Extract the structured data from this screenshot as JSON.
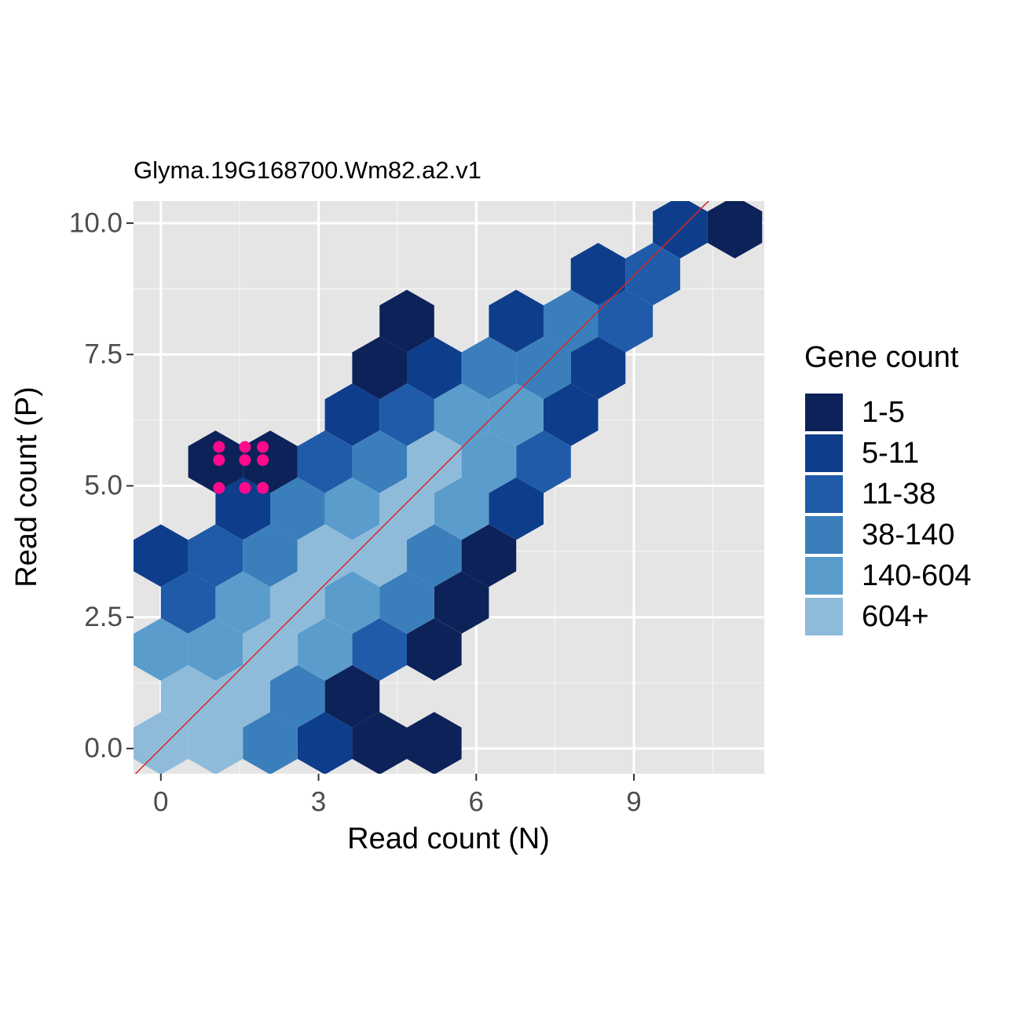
{
  "chart_data": {
    "type": "hexbin",
    "title": "Glyma.19G168700.Wm82.a2.v1",
    "x_label": "Read count (N)",
    "y_label": "Read count (P)",
    "legend_title": "Gene count",
    "xlim": [
      -0.52,
      11.48
    ],
    "ylim": [
      -0.48,
      10.42
    ],
    "xticks": [
      0,
      3,
      6,
      9
    ],
    "yticks": [
      {
        "value": 0,
        "label": "0.0"
      },
      2.5,
      {
        "value": 5,
        "label": "5.0"
      },
      7.5,
      {
        "value": 10,
        "label": "10.0"
      }
    ],
    "x_minor_grid": [
      1.5,
      4.5,
      7.5,
      10.5
    ],
    "y_minor_grid": [
      1.25,
      3.75,
      6.25,
      8.75
    ],
    "grid": true,
    "legend_position": "right",
    "series": [
      {
        "name": "1-5",
        "color": "#0c2259",
        "x": [
          4.16,
          5.2,
          3.64,
          5.2,
          5.72,
          6.24,
          1.04,
          2.08,
          4.16,
          4.68,
          10.92
        ],
        "values": [
          0.1,
          0.1,
          0.993,
          1.886,
          2.779,
          3.672,
          5.458,
          5.458,
          7.244,
          8.137,
          9.923
        ]
      },
      {
        "name": "5-11",
        "color": "#0e3d8c",
        "x": [
          3.12,
          0,
          1.56,
          6.76,
          3.64,
          7.8,
          5.2,
          8.32,
          6.76,
          8.32,
          9.88
        ],
        "values": [
          0.1,
          3.672,
          4.565,
          4.565,
          6.351,
          6.351,
          7.244,
          7.244,
          8.137,
          9.03,
          9.923
        ]
      },
      {
        "name": "11-38",
        "color": "#1f5ba8",
        "x": [
          4.16,
          0.52,
          1.04,
          3.12,
          7.28,
          4.68,
          8.84,
          9.36
        ],
        "values": [
          1.886,
          2.779,
          3.672,
          5.458,
          5.458,
          6.351,
          8.137,
          9.03
        ]
      },
      {
        "name": "38-140",
        "color": "#3a7ebb",
        "x": [
          2.08,
          2.6,
          4.68,
          2.08,
          5.2,
          2.6,
          4.16,
          6.24,
          7.28,
          7.8
        ],
        "values": [
          0.1,
          0.993,
          2.779,
          3.672,
          3.672,
          4.565,
          5.458,
          7.244,
          7.244,
          8.137
        ]
      },
      {
        "name": "140-604",
        "color": "#5a9ccc",
        "x": [
          0,
          1.04,
          3.12,
          1.56,
          3.64,
          3.64,
          5.72,
          6.24,
          5.72,
          6.76
        ],
        "values": [
          1.886,
          1.886,
          1.886,
          2.779,
          2.779,
          4.565,
          4.565,
          5.458,
          6.351,
          6.351
        ]
      },
      {
        "name": "604+",
        "color": "#8fbbdb",
        "x": [
          0,
          1.04,
          0.52,
          1.56,
          2.08,
          2.6,
          3.12,
          4.16,
          4.68,
          5.2
        ],
        "values": [
          0.1,
          0.1,
          0.993,
          0.993,
          1.886,
          2.779,
          3.672,
          3.672,
          4.565,
          5.458
        ]
      }
    ],
    "points": {
      "color": "#ff0a8c",
      "x": [
        1.106,
        1.6,
        1.94,
        1.106,
        1.6,
        1.94,
        1.106,
        1.6,
        1.94
      ],
      "values": [
        5.74,
        5.74,
        5.74,
        5.49,
        5.49,
        5.49,
        4.96,
        4.96,
        4.96
      ]
    },
    "reference_line": {
      "slope": 1,
      "intercept": 0,
      "color": "#d62728"
    }
  }
}
